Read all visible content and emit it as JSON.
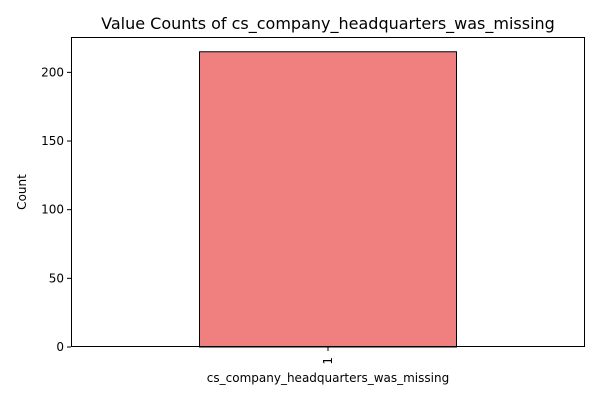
{
  "chart_data": {
    "type": "bar",
    "title": "Value Counts of cs_company_headquarters_was_missing",
    "xlabel": "cs_company_headquarters_was_missing",
    "ylabel": "Count",
    "categories": [
      "1"
    ],
    "values": [
      215
    ],
    "ylim": [
      0,
      225.75
    ],
    "yticks": [
      0,
      50,
      100,
      150,
      200
    ],
    "bar_color": "#f08080",
    "bar_edge_color": "#000000",
    "grid": false,
    "legend": "none"
  }
}
